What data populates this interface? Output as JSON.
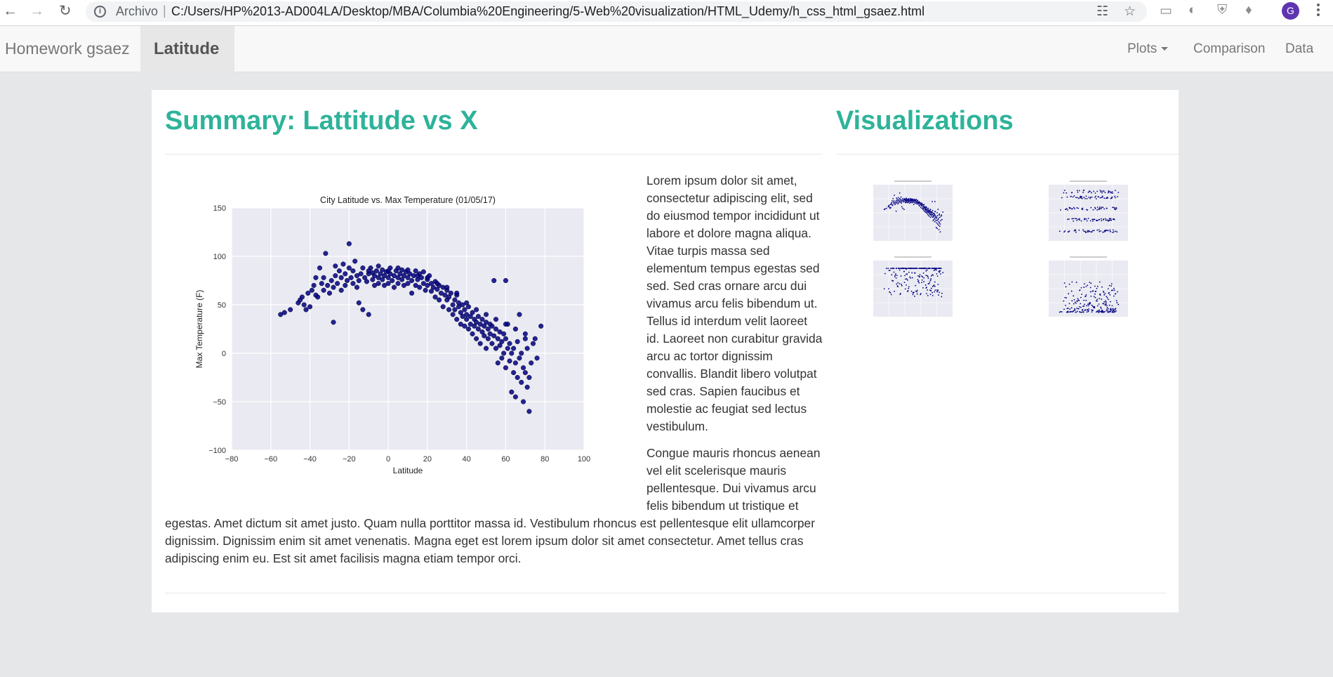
{
  "browser": {
    "scheme_label": "Archivo",
    "url": "C:/Users/HP%2013-AD004LA/Desktop/MBA/Columbia%20Engineering/5-Web%20visualization/HTML_Udemy/h_css_html_gsaez.html",
    "profile_initial": "G",
    "icons": [
      "back-arrow-icon",
      "forward-arrow-icon",
      "reload-icon",
      "info-icon",
      "translate-icon",
      "bookmark-star-icon",
      "cast-icon",
      "extension-icon",
      "shield-icon",
      "puzzle-icon",
      "menu-icon"
    ]
  },
  "navbar": {
    "brand": "Homework gsaez",
    "active": "Latitude",
    "links": {
      "plots": "Plots",
      "comparison": "Comparison",
      "data": "Data"
    }
  },
  "summary": {
    "heading": "Summary: Lattitude vs X",
    "paragraph1": "Lorem ipsum dolor sit amet, consectetur adipiscing elit, sed do eiusmod tempor incididunt ut labore et dolore magna aliqua. Vitae turpis massa sed elementum tempus egestas sed sed. Sed cras ornare arcu dui vivamus arcu felis bibendum ut. Tellus id interdum velit laoreet id. Laoreet non curabitur gravida arcu ac tortor dignissim convallis. Blandit libero volutpat sed cras. Sapien faucibus et molestie ac feugiat sed lectus vestibulum.",
    "paragraph2": "Congue mauris rhoncus aenean vel elit scelerisque mauris pellentesque. Dui vivamus arcu felis bibendum ut tristique et egestas. Amet dictum sit amet justo. Quam nulla porttitor massa id. Vestibulum rhoncus est pellentesque elit ullamcorper dignissim. Dignissim enim sit amet venenatis. Magna eget est lorem ipsum dolor sit amet consectetur. Amet tellus cras adipiscing enim eu. Est sit amet facilisis magna etiam tempor orci."
  },
  "visualizations": {
    "heading": "Visualizations"
  },
  "chart_data": {
    "type": "scatter",
    "title": "City Latitude vs. Max Temperature (01/05/17)",
    "xlabel": "Latitude",
    "ylabel": "Max Temperature (F)",
    "xlim": [
      -80,
      100
    ],
    "ylim": [
      -100,
      150
    ],
    "xticks": [
      "−80",
      "−60",
      "−40",
      "−20",
      "0",
      "20",
      "40",
      "60",
      "80",
      "100"
    ],
    "yticks": [
      "−100",
      "−50",
      "0",
      "50",
      "100",
      "150"
    ],
    "grid": true,
    "point_color": "#000080",
    "background_color": "#eaeaf2",
    "points": [
      [
        -55,
        40
      ],
      [
        -53,
        42
      ],
      [
        -50,
        45
      ],
      [
        -46,
        52
      ],
      [
        -45,
        55
      ],
      [
        -44,
        58
      ],
      [
        -43,
        50
      ],
      [
        -42,
        45
      ],
      [
        -41,
        62
      ],
      [
        -40,
        48
      ],
      [
        -39,
        65
      ],
      [
        -38,
        70
      ],
      [
        -37,
        60
      ],
      [
        -36,
        58
      ],
      [
        -35,
        88
      ],
      [
        -34,
        72
      ],
      [
        -33,
        65
      ],
      [
        -33,
        78
      ],
      [
        -32,
        103
      ],
      [
        -31,
        70
      ],
      [
        -30,
        62
      ],
      [
        -29,
        75
      ],
      [
        -28,
        68
      ],
      [
        -28,
        32
      ],
      [
        -27,
        80
      ],
      [
        -26,
        72
      ],
      [
        -25,
        85
      ],
      [
        -24,
        65
      ],
      [
        -24,
        78
      ],
      [
        -23,
        92
      ],
      [
        -22,
        70
      ],
      [
        -22,
        82
      ],
      [
        -21,
        75
      ],
      [
        -20,
        113
      ],
      [
        -20,
        88
      ],
      [
        -19,
        78
      ],
      [
        -18,
        72
      ],
      [
        -18,
        85
      ],
      [
        -17,
        95
      ],
      [
        -16,
        68
      ],
      [
        -16,
        80
      ],
      [
        -15,
        75
      ],
      [
        -15,
        52
      ],
      [
        -14,
        82
      ],
      [
        -13,
        88
      ],
      [
        -13,
        45
      ],
      [
        -12,
        78
      ],
      [
        -11,
        74
      ],
      [
        -10,
        82
      ],
      [
        -10,
        40
      ],
      [
        -9,
        88
      ],
      [
        -8,
        76
      ],
      [
        -8,
        83
      ],
      [
        -7,
        70
      ],
      [
        -7,
        80
      ],
      [
        -6,
        85
      ],
      [
        -5,
        78
      ],
      [
        -5,
        72
      ],
      [
        -4,
        82
      ],
      [
        -3,
        76
      ],
      [
        -3,
        86
      ],
      [
        -2,
        70
      ],
      [
        -2,
        80
      ],
      [
        -1,
        84
      ],
      [
        0,
        78
      ],
      [
        0,
        72
      ],
      [
        1,
        82
      ],
      [
        1,
        88
      ],
      [
        2,
        75
      ],
      [
        3,
        80
      ],
      [
        3,
        68
      ],
      [
        4,
        85
      ],
      [
        5,
        78
      ],
      [
        5,
        72
      ],
      [
        6,
        82
      ],
      [
        7,
        76
      ],
      [
        7,
        86
      ],
      [
        8,
        70
      ],
      [
        8,
        80
      ],
      [
        9,
        84
      ],
      [
        10,
        78
      ],
      [
        10,
        72
      ],
      [
        11,
        82
      ],
      [
        12,
        75
      ],
      [
        12,
        62
      ],
      [
        13,
        80
      ],
      [
        14,
        85
      ],
      [
        14,
        70
      ],
      [
        15,
        76
      ],
      [
        16,
        82
      ],
      [
        16,
        68
      ],
      [
        17,
        78
      ],
      [
        18,
        72
      ],
      [
        18,
        84
      ],
      [
        19,
        65
      ],
      [
        20,
        76
      ],
      [
        20,
        70
      ],
      [
        21,
        80
      ],
      [
        22,
        64
      ],
      [
        22,
        72
      ],
      [
        23,
        68
      ],
      [
        24,
        74
      ],
      [
        24,
        58
      ],
      [
        25,
        66
      ],
      [
        26,
        70
      ],
      [
        26,
        55
      ],
      [
        27,
        62
      ],
      [
        28,
        68
      ],
      [
        28,
        48
      ],
      [
        29,
        60
      ],
      [
        30,
        55
      ],
      [
        30,
        65
      ],
      [
        31,
        45
      ],
      [
        31,
        58
      ],
      [
        32,
        62
      ],
      [
        33,
        50
      ],
      [
        33,
        40
      ],
      [
        34,
        55
      ],
      [
        34,
        45
      ],
      [
        35,
        60
      ],
      [
        35,
        35
      ],
      [
        36,
        48
      ],
      [
        36,
        52
      ],
      [
        37,
        42
      ],
      [
        37,
        30
      ],
      [
        38,
        50
      ],
      [
        38,
        38
      ],
      [
        39,
        45
      ],
      [
        39,
        28
      ],
      [
        40,
        40
      ],
      [
        40,
        35
      ],
      [
        41,
        48
      ],
      [
        41,
        25
      ],
      [
        42,
        38
      ],
      [
        42,
        30
      ],
      [
        43,
        42
      ],
      [
        43,
        20
      ],
      [
        44,
        35
      ],
      [
        44,
        28
      ],
      [
        45,
        32
      ],
      [
        45,
        15
      ],
      [
        46,
        38
      ],
      [
        46,
        25
      ],
      [
        47,
        30
      ],
      [
        47,
        10
      ],
      [
        48,
        22
      ],
      [
        48,
        35
      ],
      [
        49,
        28
      ],
      [
        49,
        18
      ],
      [
        50,
        32
      ],
      [
        50,
        5
      ],
      [
        51,
        25
      ],
      [
        51,
        15
      ],
      [
        52,
        30
      ],
      [
        52,
        20
      ],
      [
        53,
        10
      ],
      [
        53,
        28
      ],
      [
        54,
        18
      ],
      [
        54,
        75
      ],
      [
        55,
        25
      ],
      [
        55,
        5
      ],
      [
        56,
        15
      ],
      [
        56,
        -10
      ],
      [
        57,
        22
      ],
      [
        57,
        8
      ],
      [
        58,
        12
      ],
      [
        58,
        -5
      ],
      [
        59,
        20
      ],
      [
        59,
        0
      ],
      [
        60,
        15
      ],
      [
        60,
        -15
      ],
      [
        61,
        5
      ],
      [
        61,
        30
      ],
      [
        62,
        -8
      ],
      [
        62,
        10
      ],
      [
        63,
        0
      ],
      [
        63,
        -40
      ],
      [
        64,
        -20
      ],
      [
        64,
        5
      ],
      [
        65,
        -10
      ],
      [
        65,
        -45
      ],
      [
        66,
        12
      ],
      [
        66,
        -25
      ],
      [
        67,
        -5
      ],
      [
        67,
        40
      ],
      [
        68,
        -30
      ],
      [
        68,
        0
      ],
      [
        69,
        -15
      ],
      [
        69,
        -50
      ],
      [
        70,
        -20
      ],
      [
        70,
        15
      ],
      [
        71,
        -35
      ],
      [
        71,
        5
      ],
      [
        72,
        -60
      ],
      [
        72,
        -25
      ],
      [
        73,
        -10
      ],
      [
        74,
        10
      ],
      [
        75,
        15
      ],
      [
        76,
        -5
      ],
      [
        78,
        28
      ],
      [
        -10,
        85
      ],
      [
        -5,
        90
      ],
      [
        0,
        85
      ],
      [
        5,
        88
      ],
      [
        10,
        86
      ],
      [
        15,
        80
      ],
      [
        20,
        78
      ],
      [
        25,
        72
      ],
      [
        30,
        68
      ],
      [
        35,
        62
      ],
      [
        40,
        52
      ],
      [
        45,
        45
      ],
      [
        50,
        40
      ],
      [
        55,
        35
      ],
      [
        60,
        30
      ],
      [
        65,
        25
      ],
      [
        70,
        20
      ],
      [
        60,
        75
      ],
      [
        -37,
        78
      ],
      [
        -27,
        90
      ]
    ]
  }
}
